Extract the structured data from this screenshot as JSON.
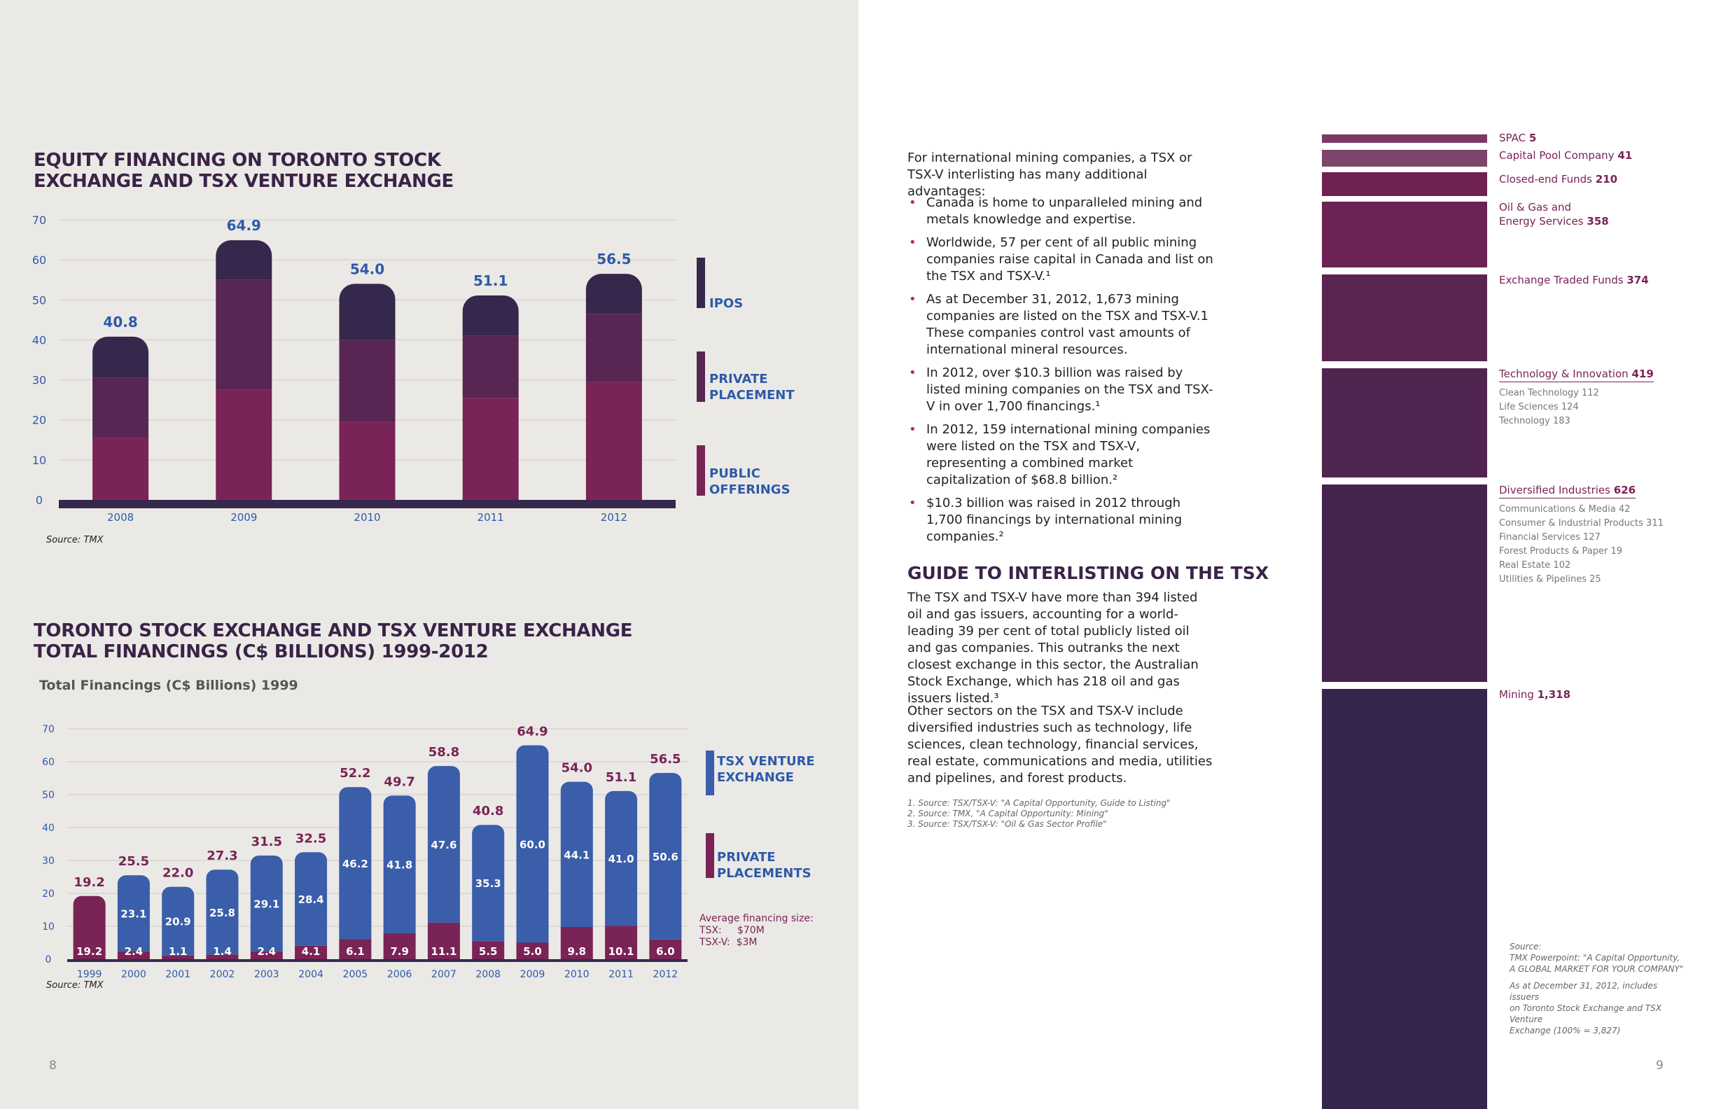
{
  "left_page": {
    "chart1_title": "EQUITY FINANCING ON TORONTO STOCK EXCHANGE AND TSX VENTURE EXCHANGE",
    "chart1_title_line1": "EQUITY FINANCING ON TORONTO STOCK",
    "chart1_title_line2": "EXCHANGE AND TSX VENTURE EXCHANGE",
    "chart1_source": "Source: TMX",
    "chart2_title_line1": "TORONTO STOCK EXCHANGE AND TSX VENTURE EXCHANGE",
    "chart2_title_line2": "TOTAL FINANCINGS (C$ BILLIONS) 1999-2012",
    "chart2_subtitle": "Total Financings (C$ Billions) 1999",
    "chart2_source": "Source: TMX",
    "avg_size_label": "Average financing size:",
    "avg_tsx": "TSX:     $70M",
    "avg_tsxv": "TSX-V:  $3M",
    "page_number": "8"
  },
  "colors": {
    "ipo": "#35284c",
    "private": "#582652",
    "public": "#7a2356",
    "tsxv_blue": "#3a5ea9",
    "private_placements": "#7a2356",
    "label_blue": "#2e5aa8",
    "label_purple": "#7a2356",
    "title": "#3a2347"
  },
  "chart_data": [
    {
      "type": "bar",
      "title": "EQUITY FINANCING ON TORONTO STOCK EXCHANGE AND TSX VENTURE EXCHANGE",
      "stacked": true,
      "categories": [
        "2008",
        "2009",
        "2010",
        "2011",
        "2012"
      ],
      "series": [
        {
          "name": "PUBLIC OFFERINGS",
          "values": [
            15.5,
            27.5,
            19.5,
            25.5,
            29.5
          ]
        },
        {
          "name": "PRIVATE PLACEMENT",
          "values": [
            15.0,
            27.5,
            20.5,
            15.5,
            17.0
          ]
        },
        {
          "name": "IPOS",
          "values": [
            10.3,
            9.9,
            14.0,
            10.1,
            10.0
          ]
        }
      ],
      "totals": [
        "40.8",
        "64.9",
        "54.0",
        "51.1",
        "56.5"
      ],
      "yticks": [
        "0",
        "10",
        "20",
        "30",
        "40",
        "50",
        "60",
        "70"
      ],
      "ylim": [
        0,
        70
      ],
      "grid": true,
      "legend_labels": [
        "IPOS",
        "PRIVATE PLACEMENT",
        "PUBLIC OFFERINGS"
      ]
    },
    {
      "type": "bar",
      "title": "TORONTO STOCK EXCHANGE AND TSX VENTURE EXCHANGE TOTAL FINANCINGS (C$ BILLIONS) 1999-2012",
      "stacked": true,
      "categories": [
        "1999",
        "2000",
        "2001",
        "2002",
        "2003",
        "2004",
        "2005",
        "2006",
        "2007",
        "2008",
        "2009",
        "2010",
        "2011",
        "2012"
      ],
      "series": [
        {
          "name": "PRIVATE PLACEMENTS",
          "values": [
            19.2,
            2.4,
            1.1,
            1.4,
            2.4,
            4.1,
            6.1,
            7.9,
            11.1,
            5.5,
            5.0,
            9.8,
            10.1,
            6.0
          ],
          "labels": [
            "19.2",
            "2.4",
            "1.1",
            "1.4",
            "2.4",
            "4.1",
            "6.1",
            "7.9",
            "11.1",
            "5.5",
            "5.0",
            "9.8",
            "10.1",
            "6.0"
          ]
        },
        {
          "name": "TSX VENTURE EXCHANGE",
          "values": [
            0,
            23.1,
            20.9,
            25.8,
            29.1,
            28.4,
            46.2,
            41.8,
            47.6,
            35.3,
            60.0,
            44.1,
            41.0,
            50.6
          ],
          "labels": [
            "",
            "23.1",
            "20.9",
            "25.8",
            "29.1",
            "28.4",
            "46.2",
            "41.8",
            "47.6",
            "35.3",
            "60.0",
            "44.1",
            "41.0",
            "50.6"
          ]
        }
      ],
      "totals": [
        "19.2",
        "25.5",
        "22.0",
        "27.3",
        "31.5",
        "32.5",
        "52.2",
        "49.7",
        "58.8",
        "40.8",
        "64.9",
        "54.0",
        "51.1",
        "56.5"
      ],
      "yticks": [
        "0",
        "10",
        "20",
        "30",
        "40",
        "50",
        "60",
        "70"
      ],
      "ylim": [
        0,
        70
      ],
      "grid": true,
      "legend_labels": [
        "TSX VENTURE EXCHANGE",
        "PRIVATE PLACEMENTS"
      ]
    }
  ],
  "right_page": {
    "intro": "For international mining companies, a TSX or TSX-V interlisting has many additional advantages:",
    "bullets": [
      "Canada is home to unparalleled mining and metals knowledge and expertise.",
      "Worldwide, 57 per cent of all public mining companies raise capital in Canada and list on the TSX and TSX-V.¹",
      "As at December 31, 2012, 1,673 mining companies are listed on the TSX and TSX-V.1 These companies control vast amounts of international mineral resources.",
      "In 2012, over $10.3 billion was raised by listed mining companies on the TSX and TSX-V in over 1,700 financings.¹",
      "In 2012, 159 international mining companies were listed on the TSX and TSX-V, representing a combined market capitalization of $68.8 billion.²",
      "$10.3 billion was raised in 2012 through 1,700 financings by international mining companies.²"
    ],
    "heading": "GUIDE TO INTERLISTING ON THE TSX",
    "para1": "The TSX and TSX-V have more than 394 listed oil and gas issuers, accounting for a world-leading 39 per cent of total publicly listed oil and gas companies. This outranks the next closest exchange in this sector, the Australian Stock Exchange, which has 218 oil and gas issuers listed.³",
    "para2": "Other sectors on the TSX and TSX-V include diversified industries such as technology, life sciences, clean technology, financial services, real estate, communications and media, utilities and pipelines, and forest products.",
    "footnotes": [
      "1. Source: TSX/TSX-V: \"A Capital Opportunity, Guide to Listing\"",
      "2. Source: TMX, \"A Capital Opportunity: Mining\"",
      "3.  Source: TSX/TSX-V: \"Oil & Gas Sector Profile\""
    ],
    "sectors": [
      {
        "name": "SPAC",
        "value": "5",
        "color": "#7a3a63"
      },
      {
        "name": "Capital Pool Company",
        "value": "41",
        "color": "#7d4569"
      },
      {
        "name": "Closed-end Funds",
        "value": "210",
        "color": "#6f2252"
      },
      {
        "name": "Oil & Gas and",
        "name2": "Energy Services",
        "value": "358",
        "color": "#6b2353"
      },
      {
        "name": "Exchange Traded Funds",
        "value": "374",
        "color": "#5b2552"
      },
      {
        "name": "Technology & Innovation",
        "value": "419",
        "color": "#50254f",
        "subs": [
          "Clean Technology 112",
          "Life Sciences 124",
          "Technology 183"
        ]
      },
      {
        "name": "Diversified Industries",
        "value": "626",
        "color": "#44244d",
        "subs": [
          "Communications & Media 42",
          "Consumer & Industrial Products 311",
          "Financial Services 127",
          "Forest Products & Paper 19",
          "Real Estate 102",
          "Utilities & Pipelines 25"
        ]
      },
      {
        "name": "Mining",
        "value": "1,318",
        "color": "#35254a"
      }
    ],
    "source_line1": "Source:",
    "source_line2": "TMX Powerpoint: \"A Capital Opportunity,",
    "source_line3": "A GLOBAL MARKET FOR YOUR COMPANY\"",
    "source_line4": "As at December 31, 2012, includes issuers",
    "source_line5": "on Toronto Stock Exchange and TSX Venture",
    "source_line6": "Exchange (100% = 3,827)",
    "page_number": "9"
  }
}
